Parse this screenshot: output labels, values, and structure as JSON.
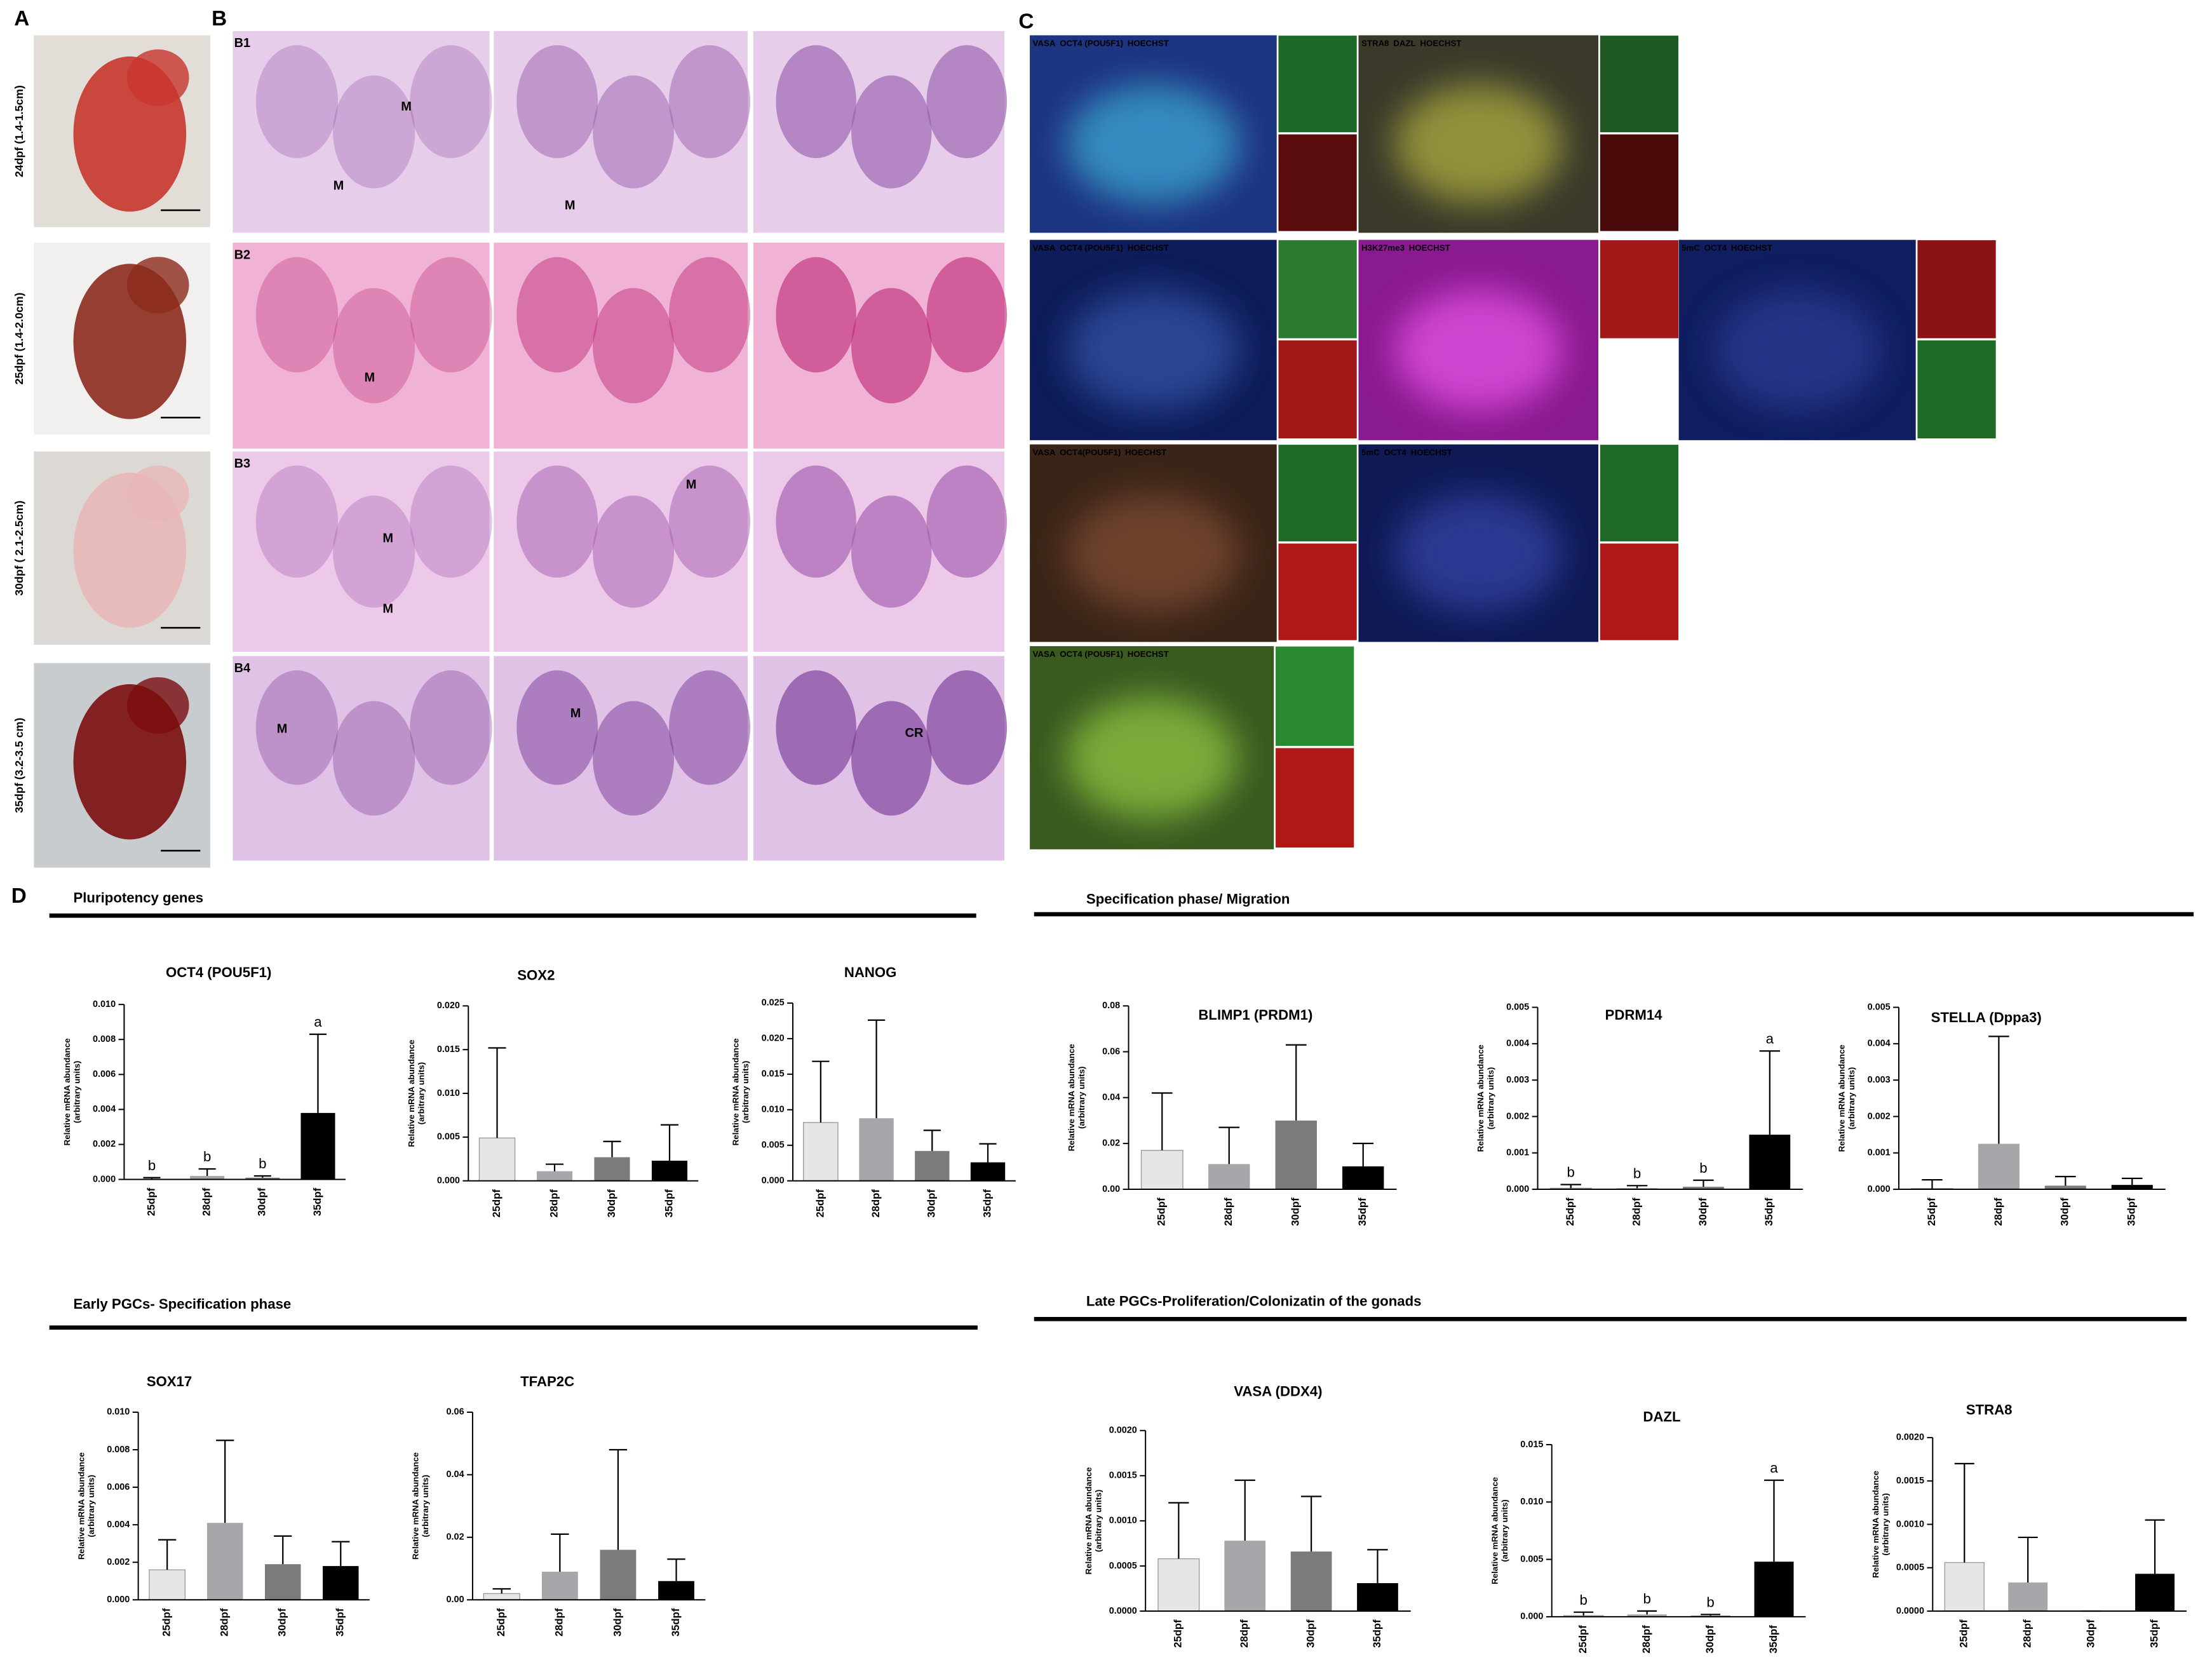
{
  "panels": {
    "A": {
      "label": "A",
      "captions": [
        "24dpf (1.4-1.5cm)",
        "25dpf (1.4-2.0cm)",
        "30dpf ( 2.1-2.5cm)",
        "35dpf (3.2-3.5 cm)"
      ]
    },
    "B": {
      "label": "B",
      "rows": [
        {
          "label": "B1",
          "notes": [
            "M",
            "M",
            "M"
          ]
        },
        {
          "label": "B2",
          "notes": [
            "M"
          ]
        },
        {
          "label": "B3",
          "notes": [
            "M",
            "M",
            "M"
          ]
        },
        {
          "label": "B4",
          "notes": [
            "M",
            "M",
            "CR"
          ]
        }
      ]
    },
    "C": {
      "label": "C",
      "images": [
        {
          "channels": [
            {
              "text": "VASA",
              "color": "#33ee33"
            },
            {
              "text": "OCT4 (POU5F1)",
              "color": "#ff3333"
            },
            {
              "text": "HOECHST",
              "color": "#4455ff"
            }
          ]
        },
        {
          "channels": [
            {
              "text": "STRA8",
              "color": "#33ee33"
            },
            {
              "text": "DAZL",
              "color": "#ff3333"
            },
            {
              "text": "HOECHST",
              "color": "#4455ff"
            }
          ]
        },
        {
          "channels": [
            {
              "text": "VASA",
              "color": "#33ee33"
            },
            {
              "text": "OCT4 (POU5F1)",
              "color": "#ff3333"
            },
            {
              "text": "HOECHST",
              "color": "#4455ff"
            }
          ]
        },
        {
          "channels": [
            {
              "text": "H3K27me3",
              "color": "#ff3333"
            },
            {
              "text": "HOECHST",
              "color": "#4455ff"
            }
          ]
        },
        {
          "channels": [
            {
              "text": "5mC",
              "color": "#33ee33"
            },
            {
              "text": "OCT4",
              "color": "#ff3333"
            },
            {
              "text": "HOECHST",
              "color": "#4455ff"
            }
          ]
        },
        {
          "channels": [
            {
              "text": "VASA",
              "color": "#33ee33"
            },
            {
              "text": "OCT4(POU5F1)",
              "color": "#ff3333"
            },
            {
              "text": "HOECHST",
              "color": "#4455ff"
            }
          ]
        },
        {
          "channels": [
            {
              "text": "5mC",
              "color": "#33ee33"
            },
            {
              "text": "OCT4",
              "color": "#ff3333"
            },
            {
              "text": "HOECHST",
              "color": "#4455ff"
            }
          ]
        },
        {
          "channels": [
            {
              "text": "VASA",
              "color": "#33ee33"
            },
            {
              "text": "OCT4 (POU5F1)",
              "color": "#ff3333"
            },
            {
              "text": "HOECHST",
              "color": "#4455ff"
            }
          ]
        }
      ]
    },
    "D": {
      "label": "D",
      "sections": [
        "Pluripotency genes",
        "Specification phase/ Migration",
        "Early PGCs- Specification phase",
        "Late PGCs-Proliferation/Colonizatin of the gonads"
      ]
    }
  },
  "chart_data": [
    {
      "type": "bar",
      "title": "OCT4 (POU5F1)",
      "ylabel": [
        "Relative mRNA abundance",
        "(arbitrary units)"
      ],
      "categories": [
        "25dpf",
        "28dpf",
        "30dpf",
        "35dpf"
      ],
      "colors": [
        "#e6e6e6",
        "#a6a6ab",
        "#7b7b7b",
        "#000000"
      ],
      "values": [
        0,
        0.0002,
        0.0001,
        0.0038
      ],
      "errors": [
        0.0001,
        0.0004,
        0.0001,
        0.0045
      ],
      "letters": [
        "b",
        "b",
        "b",
        "a"
      ],
      "ylim": [
        0,
        0.01
      ],
      "yticks": [
        {
          "value": 0,
          "label": "0.000"
        },
        {
          "value": 0.002,
          "label": "0.002"
        },
        {
          "value": 0.004,
          "label": "0.004"
        },
        {
          "value": 0.006,
          "label": "0.006"
        },
        {
          "value": 0.008,
          "label": "0.008"
        },
        {
          "value": 0.01,
          "label": "0.010"
        }
      ]
    },
    {
      "type": "bar",
      "title": "SOX2",
      "ylabel": [
        "Relative mRNA abundance",
        "(arbitrary units)"
      ],
      "categories": [
        "25dpf",
        "28dpf",
        "30dpf",
        "35dpf"
      ],
      "colors": [
        "#e6e6e6",
        "#a6a6ab",
        "#7b7b7b",
        "#000000"
      ],
      "values": [
        0.0049,
        0.0011,
        0.0027,
        0.0023
      ],
      "errors": [
        0.0103,
        0.0008,
        0.0018,
        0.0041
      ],
      "ylim": [
        0,
        0.02
      ],
      "yticks": [
        {
          "value": 0,
          "label": "0.000"
        },
        {
          "value": 0.005,
          "label": "0.005"
        },
        {
          "value": 0.01,
          "label": "0.010"
        },
        {
          "value": 0.015,
          "label": "0.015"
        },
        {
          "value": 0.02,
          "label": "0.020"
        }
      ]
    },
    {
      "type": "bar",
      "title": "NANOG",
      "ylabel": [
        "Relative mRNA abundance",
        "(arbitrary units)"
      ],
      "categories": [
        "25dpf",
        "28dpf",
        "30dpf",
        "35dpf"
      ],
      "colors": [
        "#e6e6e6",
        "#a6a6ab",
        "#7b7b7b",
        "#000000"
      ],
      "values": [
        0.0082,
        0.0088,
        0.0042,
        0.0026
      ],
      "errors": [
        0.0086,
        0.0138,
        0.0029,
        0.0026
      ],
      "ylim": [
        0,
        0.025
      ],
      "yticks": [
        {
          "value": 0,
          "label": "0.000"
        },
        {
          "value": 0.005,
          "label": "0.005"
        },
        {
          "value": 0.01,
          "label": "0.010"
        },
        {
          "value": 0.015,
          "label": "0.015"
        },
        {
          "value": 0.02,
          "label": "0.020"
        },
        {
          "value": 0.025,
          "label": "0.025"
        }
      ]
    },
    {
      "type": "bar",
      "title": "BLIMP1 (PRDM1)",
      "ylabel": [
        "Relative mRNA abundance",
        "(arbitrary units)"
      ],
      "categories": [
        "25dpf",
        "28dpf",
        "30dpf",
        "35dpf"
      ],
      "colors": [
        "#e6e6e6",
        "#a6a6ab",
        "#7b7b7b",
        "#000000"
      ],
      "values": [
        0.017,
        0.011,
        0.03,
        0.01
      ],
      "errors": [
        0.025,
        0.016,
        0.033,
        0.01
      ],
      "ylim": [
        0,
        0.08
      ],
      "yticks": [
        {
          "value": 0,
          "label": "0.00"
        },
        {
          "value": 0.02,
          "label": "0.02"
        },
        {
          "value": 0.04,
          "label": "0.04"
        },
        {
          "value": 0.06,
          "label": "0.06"
        },
        {
          "value": 0.08,
          "label": "0.08"
        }
      ]
    },
    {
      "type": "bar",
      "title": "PDRM14",
      "ylabel": [
        "Relative mRNA abundance",
        "(arbitrary units)"
      ],
      "categories": [
        "25dpf",
        "28dpf",
        "30dpf",
        "35dpf"
      ],
      "colors": [
        "#e6e6e6",
        "#a6a6ab",
        "#7b7b7b",
        "#000000"
      ],
      "values": [
        3e-05,
        3e-05,
        7e-05,
        0.0015
      ],
      "errors": [
        0.0001,
        7e-05,
        0.00018,
        0.0023
      ],
      "letters": [
        "b",
        "b",
        "b",
        "a"
      ],
      "ylim": [
        0,
        0.005
      ],
      "yticks": [
        {
          "value": 0,
          "label": "0.000"
        },
        {
          "value": 0.001,
          "label": "0.001"
        },
        {
          "value": 0.002,
          "label": "0.002"
        },
        {
          "value": 0.003,
          "label": "0.003"
        },
        {
          "value": 0.004,
          "label": "0.004"
        },
        {
          "value": 0.005,
          "label": "0.005"
        }
      ]
    },
    {
      "type": "bar",
      "title": "STELLA (Dppa3)",
      "ylabel": [
        "Relative mRNA abundance",
        "(arbitrary units)"
      ],
      "categories": [
        "25dpf",
        "28dpf",
        "30dpf",
        "35dpf"
      ],
      "colors": [
        "#e6e6e6",
        "#a6a6ab",
        "#7b7b7b",
        "#000000"
      ],
      "values": [
        2e-05,
        0.00125,
        0.0001,
        0.00012
      ],
      "errors": [
        0.00024,
        0.00295,
        0.00025,
        0.00018
      ],
      "ylim": [
        0,
        0.005
      ],
      "yticks": [
        {
          "value": 0,
          "label": "0.000"
        },
        {
          "value": 0.001,
          "label": "0.001"
        },
        {
          "value": 0.002,
          "label": "0.002"
        },
        {
          "value": 0.003,
          "label": "0.003"
        },
        {
          "value": 0.004,
          "label": "0.004"
        },
        {
          "value": 0.005,
          "label": "0.005"
        }
      ]
    },
    {
      "type": "bar",
      "title": "SOX17",
      "ylabel": [
        "Relative mRNA abundance",
        "(arbitrary units)"
      ],
      "categories": [
        "25dpf",
        "28dpf",
        "30dpf",
        "35dpf"
      ],
      "colors": [
        "#e6e6e6",
        "#a6a6ab",
        "#7b7b7b",
        "#000000"
      ],
      "values": [
        0.0016,
        0.0041,
        0.0019,
        0.0018
      ],
      "errors": [
        0.0016,
        0.0044,
        0.0015,
        0.0013
      ],
      "ylim": [
        0,
        0.01
      ],
      "yticks": [
        {
          "value": 0,
          "label": "0.000"
        },
        {
          "value": 0.002,
          "label": "0.002"
        },
        {
          "value": 0.004,
          "label": "0.004"
        },
        {
          "value": 0.006,
          "label": "0.006"
        },
        {
          "value": 0.008,
          "label": "0.008"
        },
        {
          "value": 0.01,
          "label": "0.010"
        }
      ]
    },
    {
      "type": "bar",
      "title": "TFAP2C",
      "ylabel": [
        "Relative mRNA abundance",
        "(arbitrary units)"
      ],
      "categories": [
        "25dpf",
        "28dpf",
        "30dpf",
        "35dpf"
      ],
      "colors": [
        "#e6e6e6",
        "#a6a6ab",
        "#7b7b7b",
        "#000000"
      ],
      "values": [
        0.002,
        0.009,
        0.016,
        0.006
      ],
      "errors": [
        0.0015,
        0.012,
        0.032,
        0.007
      ],
      "ylim": [
        0,
        0.06
      ],
      "yticks": [
        {
          "value": 0,
          "label": "0.00"
        },
        {
          "value": 0.02,
          "label": "0.02"
        },
        {
          "value": 0.04,
          "label": "0.04"
        },
        {
          "value": 0.06,
          "label": "0.06"
        }
      ]
    },
    {
      "type": "bar",
      "title": "VASA (DDX4)",
      "ylabel": [
        "Relative mRNA abundance",
        "(arbitrary units)"
      ],
      "categories": [
        "25dpf",
        "28dpf",
        "30dpf",
        "35dpf"
      ],
      "colors": [
        "#e6e6e6",
        "#a6a6ab",
        "#7b7b7b",
        "#000000"
      ],
      "values": [
        0.00058,
        0.00078,
        0.00066,
        0.00031
      ],
      "errors": [
        0.00062,
        0.00067,
        0.00061,
        0.00037
      ],
      "ylim": [
        0,
        0.002
      ],
      "yticks": [
        {
          "value": 0,
          "label": "0.0000"
        },
        {
          "value": 0.0005,
          "label": "0.0005"
        },
        {
          "value": 0.001,
          "label": "0.0010"
        },
        {
          "value": 0.0015,
          "label": "0.0015"
        },
        {
          "value": 0.002,
          "label": "0.0020"
        }
      ]
    },
    {
      "type": "bar",
      "title": "DAZL",
      "ylabel": [
        "Relative mRNA abundance",
        "(arbitrary units)"
      ],
      "categories": [
        "25dpf",
        "28dpf",
        "30dpf",
        "35dpf"
      ],
      "colors": [
        "#e6e6e6",
        "#a6a6ab",
        "#7b7b7b",
        "#000000"
      ],
      "values": [
        0.0001,
        0.0002,
        0.0001,
        0.0048
      ],
      "errors": [
        0.0003,
        0.0003,
        0.0001,
        0.0071
      ],
      "letters": [
        "b",
        "b",
        "b",
        "a"
      ],
      "ylim": [
        0,
        0.015
      ],
      "yticks": [
        {
          "value": 0,
          "label": "0.000"
        },
        {
          "value": 0.005,
          "label": "0.005"
        },
        {
          "value": 0.01,
          "label": "0.010"
        },
        {
          "value": 0.015,
          "label": "0.015"
        }
      ]
    },
    {
      "type": "bar",
      "title": "STRA8",
      "ylabel": [
        "Relative mRNA abundance",
        "(arbitrary units)"
      ],
      "categories": [
        "25dpf",
        "28dpf",
        "30dpf",
        "35dpf"
      ],
      "colors": [
        "#e6e6e6",
        "#a6a6ab",
        "#7b7b7b",
        "#000000"
      ],
      "values": [
        0.00056,
        0.00033,
        0,
        0.00043
      ],
      "errors": [
        0.00114,
        0.00052,
        0,
        0.00062
      ],
      "ylim": [
        0,
        0.002
      ],
      "yticks": [
        {
          "value": 0,
          "label": "0.0000"
        },
        {
          "value": 0.0005,
          "label": "0.0005"
        },
        {
          "value": 0.001,
          "label": "0.0010"
        },
        {
          "value": 0.0015,
          "label": "0.0015"
        },
        {
          "value": 0.002,
          "label": "0.0020"
        }
      ]
    }
  ]
}
